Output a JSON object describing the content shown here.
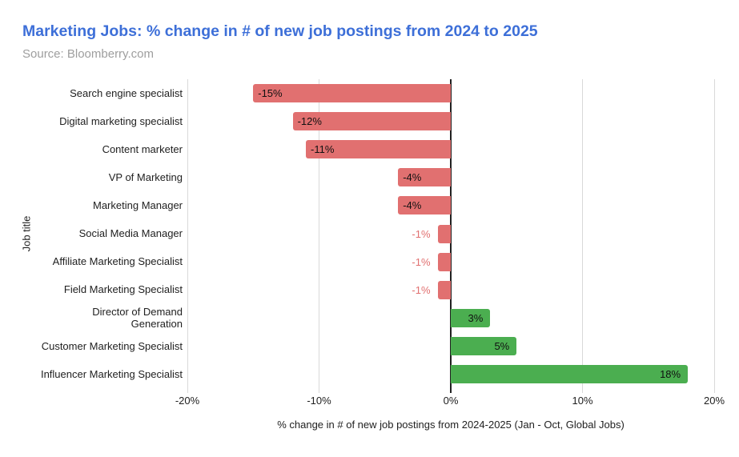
{
  "header": {
    "title": "Marketing Jobs: % change in # of new job postings from 2024 to 2025",
    "subtitle": "Source: Bloomberry.com"
  },
  "colors": {
    "title_blue": "#3d6fd8",
    "subtitle_gray": "#9e9e9e",
    "negative_bar": "#e17070",
    "positive_bar": "#4bae50",
    "inside_label": "#111111",
    "outside_negative_label": "#e17070",
    "gridline": "#d9d9d9",
    "zero_line": "#212121"
  },
  "chart_data": {
    "type": "bar",
    "orientation": "horizontal",
    "title": "Marketing Jobs: % change in # of new job postings from 2024 to 2025",
    "source": "Source: Bloomberry.com",
    "categories": [
      "Search engine specialist",
      "Digital marketing specialist",
      "Content marketer",
      "VP of Marketing",
      "Marketing Manager",
      "Social Media Manager",
      "Affiliate Marketing Specialist",
      "Field Marketing Specialist",
      "Director of Demand\nGeneration",
      "Customer Marketing Specialist",
      "Influencer Marketing Specialist"
    ],
    "values": [
      -15,
      -12,
      -11,
      -4,
      -4,
      -1,
      -1,
      -1,
      3,
      5,
      18
    ],
    "labels": [
      "-15%",
      "-12%",
      "-11%",
      "-4%",
      "-4%",
      "-1%",
      "-1%",
      "-1%",
      "3%",
      "5%",
      "18%"
    ],
    "xlabel": "% change in # of new job postings from 2024-2025 (Jan - Oct, Global Jobs)",
    "ylabel": "Job title",
    "xlim": [
      -20,
      20
    ],
    "x_tick_values": [
      -20,
      -10,
      0,
      10,
      20
    ],
    "x_tick_labels": [
      "-20%",
      "-10%",
      "0%",
      "10%",
      "20%"
    ],
    "grid": true,
    "legend": false
  }
}
